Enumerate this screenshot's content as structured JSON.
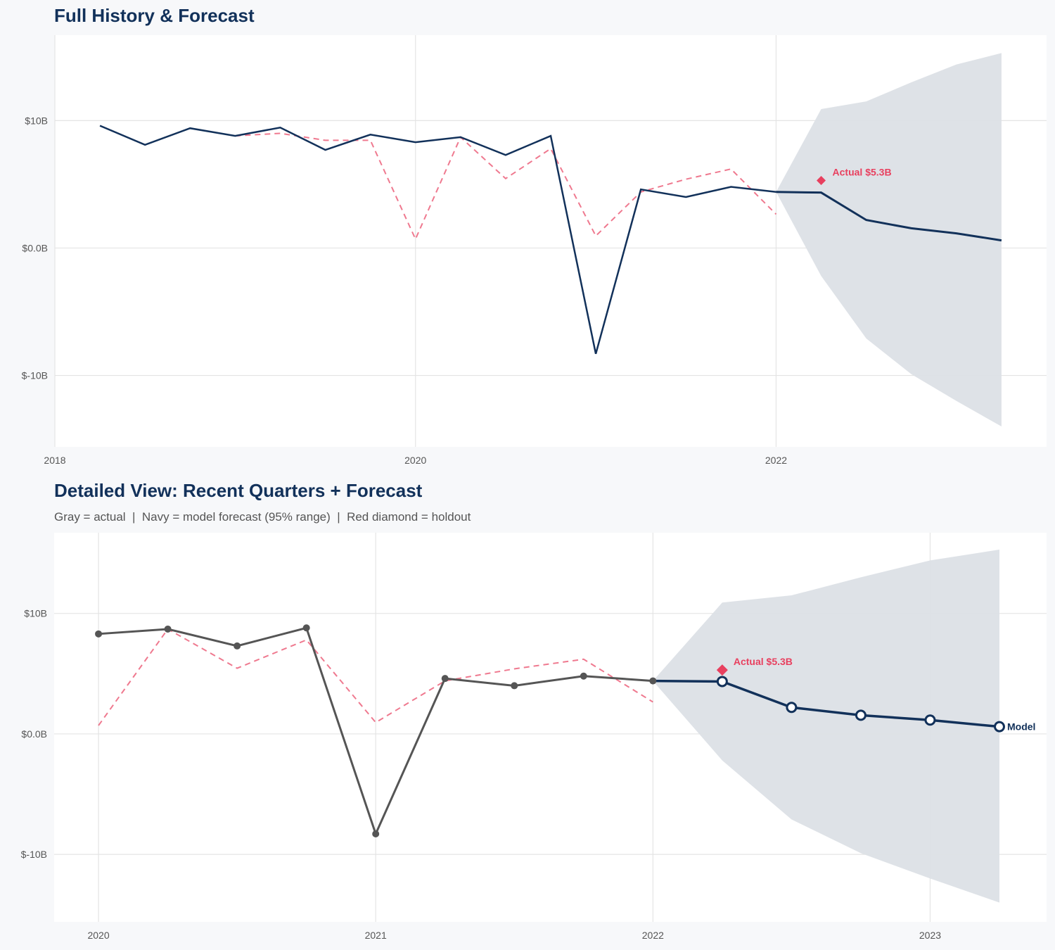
{
  "colors": {
    "navy": "#12315a",
    "red": "#e8405f",
    "gray": "#555555",
    "band": "#dce0e6",
    "grid": "#e4e4e4"
  },
  "chart_data": [
    {
      "type": "line",
      "title": "Full History & Forecast",
      "xlim": [
        2018,
        2023.5
      ],
      "ylim": [
        -15.6,
        16.7
      ],
      "grid": true,
      "x_ticks": [
        {
          "v": 2018,
          "label": "2018"
        },
        {
          "v": 2020,
          "label": "2020"
        },
        {
          "v": 2022,
          "label": "2022"
        }
      ],
      "y_ticks": [
        {
          "v": 10,
          "label": "$10B"
        },
        {
          "v": 0,
          "label": "$0.0B"
        },
        {
          "v": -10,
          "label": "$-10B"
        }
      ],
      "actual": {
        "x": [
          2018.25,
          2018.5,
          2018.75,
          2019,
          2019.25,
          2019.5,
          2019.75,
          2020,
          2020.25,
          2020.5,
          2020.75,
          2021,
          2021.25,
          2021.5,
          2021.75,
          2022
        ],
        "y": [
          9.6,
          8.1,
          9.4,
          8.8,
          9.45,
          7.7,
          8.9,
          8.3,
          8.7,
          7.3,
          8.8,
          -8.3,
          4.6,
          4.0,
          4.8,
          4.4
        ]
      },
      "dashed": {
        "x": [
          2019,
          2019.25,
          2019.5,
          2019.75,
          2020,
          2020.25,
          2020.5,
          2020.75,
          2021,
          2021.25,
          2021.5,
          2021.75,
          2022
        ],
        "y": [
          8.8,
          9.0,
          8.45,
          8.45,
          0.7,
          8.7,
          5.45,
          7.8,
          0.95,
          4.4,
          5.4,
          6.2,
          2.65
        ]
      },
      "forecast": {
        "x": [
          2022,
          2022.25,
          2022.5,
          2022.75,
          2023,
          2023.25
        ],
        "y": [
          4.4,
          4.35,
          2.2,
          1.55,
          1.15,
          0.6
        ],
        "upper": [
          4.4,
          10.9,
          11.5,
          13.0,
          14.4,
          15.3
        ],
        "lower": [
          4.4,
          -2.2,
          -7.1,
          -9.9,
          -12.0,
          -14.0
        ]
      },
      "holdout": {
        "x": 2022.25,
        "y": 5.3,
        "label": "Actual $5.3B"
      }
    },
    {
      "type": "line",
      "title": "Detailed View: Recent Quarters + Forecast",
      "subtitle": "Gray = actual  |  Navy = model forecast (95% range)  |  Red diamond = holdout",
      "xlim": [
        2019.84,
        2023.42
      ],
      "ylim": [
        -15.6,
        16.7
      ],
      "grid": true,
      "x_ticks": [
        {
          "v": 2020,
          "label": "2020"
        },
        {
          "v": 2021,
          "label": "2021"
        },
        {
          "v": 2022,
          "label": "2022"
        },
        {
          "v": 2023,
          "label": "2023"
        }
      ],
      "y_ticks": [
        {
          "v": 10,
          "label": "$10B"
        },
        {
          "v": 0,
          "label": "$0.0B"
        },
        {
          "v": -10,
          "label": "$-10B"
        }
      ],
      "actual": {
        "x": [
          2020,
          2020.25,
          2020.5,
          2020.75,
          2021,
          2021.25,
          2021.5,
          2021.75,
          2022
        ],
        "y": [
          8.3,
          8.7,
          7.3,
          8.8,
          -8.3,
          4.6,
          4.0,
          4.8,
          4.4
        ]
      },
      "dashed": {
        "x": [
          2020,
          2020.25,
          2020.5,
          2020.75,
          2021,
          2021.25,
          2021.5,
          2021.75,
          2022
        ],
        "y": [
          0.7,
          8.7,
          5.45,
          7.8,
          0.95,
          4.4,
          5.4,
          6.2,
          2.65
        ]
      },
      "forecast": {
        "x": [
          2022,
          2022.25,
          2022.5,
          2022.75,
          2023,
          2023.25
        ],
        "y": [
          4.4,
          4.35,
          2.2,
          1.55,
          1.15,
          0.6
        ],
        "upper": [
          4.4,
          10.9,
          11.5,
          13.0,
          14.4,
          15.3
        ],
        "lower": [
          4.4,
          -2.2,
          -7.1,
          -9.9,
          -12.0,
          -14.0
        ],
        "end_label": "Model"
      },
      "holdout": {
        "x": 2022.25,
        "y": 5.3,
        "label": "Actual $5.3B"
      }
    }
  ]
}
